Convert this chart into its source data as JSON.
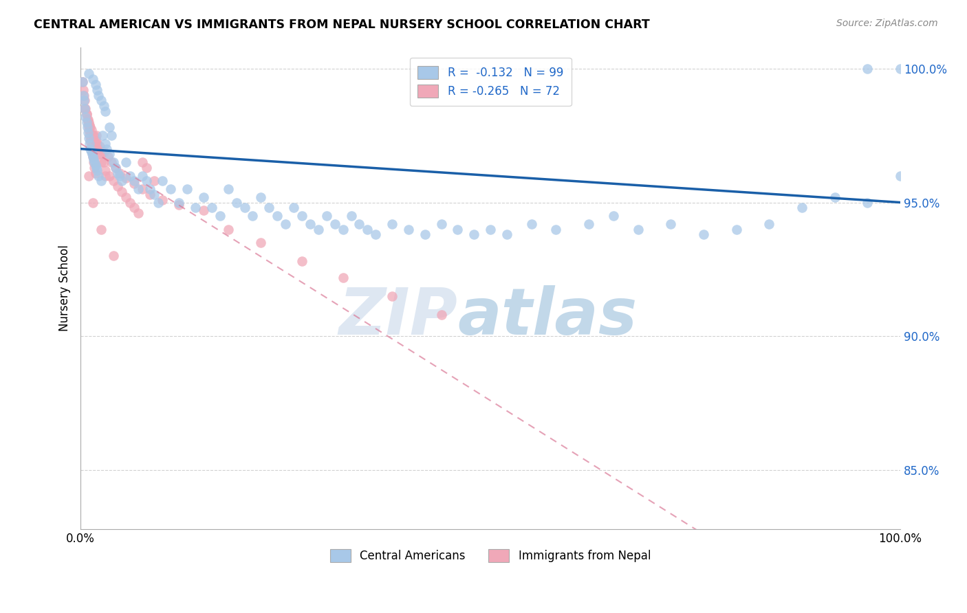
{
  "title": "CENTRAL AMERICAN VS IMMIGRANTS FROM NEPAL NURSERY SCHOOL CORRELATION CHART",
  "source": "Source: ZipAtlas.com",
  "ylabel": "Nursery School",
  "xlim": [
    0.0,
    1.0
  ],
  "ylim": [
    0.828,
    1.008
  ],
  "yticks": [
    0.85,
    0.9,
    0.95,
    1.0
  ],
  "ytick_labels": [
    "85.0%",
    "90.0%",
    "95.0%",
    "100.0%"
  ],
  "xticks": [
    0.0,
    0.2,
    0.4,
    0.6,
    0.8,
    1.0
  ],
  "xtick_labels": [
    "0.0%",
    "",
    "",
    "",
    "",
    "100.0%"
  ],
  "legend_blue_label": "R =  -0.132   N = 99",
  "legend_pink_label": "R = -0.265   N = 72",
  "legend_label1": "Central Americans",
  "legend_label2": "Immigrants from Nepal",
  "blue_color": "#a8c8e8",
  "pink_color": "#f0a8b8",
  "blue_line_color": "#1a5fa8",
  "pink_line_color": "#d87090",
  "watermark_zip": "ZIP",
  "watermark_atlas": "atlas",
  "blue_R": -0.132,
  "pink_R": -0.265,
  "blue_line_start_y": 0.97,
  "blue_line_end_y": 0.95,
  "pink_line_start_y": 0.972,
  "pink_line_end_y": 0.78,
  "blue_scatter_x": [
    0.002,
    0.003,
    0.004,
    0.005,
    0.006,
    0.007,
    0.008,
    0.009,
    0.01,
    0.011,
    0.012,
    0.013,
    0.014,
    0.015,
    0.016,
    0.017,
    0.018,
    0.019,
    0.02,
    0.022,
    0.025,
    0.027,
    0.03,
    0.032,
    0.035,
    0.038,
    0.04,
    0.043,
    0.045,
    0.048,
    0.05,
    0.055,
    0.06,
    0.065,
    0.07,
    0.075,
    0.08,
    0.085,
    0.09,
    0.095,
    0.1,
    0.11,
    0.12,
    0.13,
    0.14,
    0.15,
    0.16,
    0.17,
    0.18,
    0.19,
    0.2,
    0.21,
    0.22,
    0.23,
    0.24,
    0.25,
    0.26,
    0.27,
    0.28,
    0.29,
    0.3,
    0.31,
    0.32,
    0.33,
    0.34,
    0.35,
    0.36,
    0.38,
    0.4,
    0.42,
    0.44,
    0.46,
    0.48,
    0.5,
    0.52,
    0.55,
    0.58,
    0.62,
    0.65,
    0.68,
    0.72,
    0.76,
    0.8,
    0.84,
    0.88,
    0.92,
    0.96,
    1.0,
    0.96,
    1.0,
    0.01,
    0.015,
    0.018,
    0.02,
    0.022,
    0.025,
    0.028,
    0.03,
    0.035
  ],
  "blue_scatter_y": [
    0.995,
    0.99,
    0.988,
    0.985,
    0.982,
    0.98,
    0.978,
    0.976,
    0.974,
    0.972,
    0.97,
    0.969,
    0.968,
    0.967,
    0.966,
    0.965,
    0.964,
    0.963,
    0.962,
    0.96,
    0.958,
    0.975,
    0.972,
    0.97,
    0.968,
    0.975,
    0.965,
    0.963,
    0.961,
    0.96,
    0.958,
    0.965,
    0.96,
    0.958,
    0.955,
    0.96,
    0.958,
    0.955,
    0.953,
    0.95,
    0.958,
    0.955,
    0.95,
    0.955,
    0.948,
    0.952,
    0.948,
    0.945,
    0.955,
    0.95,
    0.948,
    0.945,
    0.952,
    0.948,
    0.945,
    0.942,
    0.948,
    0.945,
    0.942,
    0.94,
    0.945,
    0.942,
    0.94,
    0.945,
    0.942,
    0.94,
    0.938,
    0.942,
    0.94,
    0.938,
    0.942,
    0.94,
    0.938,
    0.94,
    0.938,
    0.942,
    0.94,
    0.942,
    0.945,
    0.94,
    0.942,
    0.938,
    0.94,
    0.942,
    0.948,
    0.952,
    0.95,
    0.96,
    1.0,
    1.0,
    0.998,
    0.996,
    0.994,
    0.992,
    0.99,
    0.988,
    0.986,
    0.984,
    0.978
  ],
  "pink_scatter_x": [
    0.002,
    0.003,
    0.004,
    0.005,
    0.006,
    0.007,
    0.008,
    0.009,
    0.01,
    0.011,
    0.012,
    0.013,
    0.014,
    0.015,
    0.016,
    0.017,
    0.018,
    0.019,
    0.02,
    0.022,
    0.025,
    0.028,
    0.03,
    0.035,
    0.04,
    0.045,
    0.05,
    0.055,
    0.06,
    0.065,
    0.07,
    0.075,
    0.08,
    0.09,
    0.01,
    0.012,
    0.015,
    0.018,
    0.02,
    0.022,
    0.025,
    0.03,
    0.005,
    0.007,
    0.009,
    0.011,
    0.013,
    0.016,
    0.019,
    0.023,
    0.028,
    0.033,
    0.038,
    0.043,
    0.048,
    0.055,
    0.065,
    0.075,
    0.085,
    0.1,
    0.12,
    0.15,
    0.18,
    0.22,
    0.27,
    0.32,
    0.38,
    0.44,
    0.01,
    0.015,
    0.025,
    0.04
  ],
  "pink_scatter_y": [
    0.995,
    0.992,
    0.99,
    0.988,
    0.985,
    0.983,
    0.981,
    0.979,
    0.977,
    0.975,
    0.973,
    0.971,
    0.969,
    0.967,
    0.965,
    0.963,
    0.961,
    0.975,
    0.972,
    0.97,
    0.968,
    0.965,
    0.962,
    0.96,
    0.958,
    0.956,
    0.954,
    0.952,
    0.95,
    0.948,
    0.946,
    0.965,
    0.963,
    0.958,
    0.98,
    0.978,
    0.975,
    0.972,
    0.97,
    0.968,
    0.965,
    0.96,
    0.985,
    0.983,
    0.981,
    0.979,
    0.977,
    0.975,
    0.973,
    0.971,
    0.969,
    0.967,
    0.965,
    0.963,
    0.961,
    0.959,
    0.957,
    0.955,
    0.953,
    0.951,
    0.949,
    0.947,
    0.94,
    0.935,
    0.928,
    0.922,
    0.915,
    0.908,
    0.96,
    0.95,
    0.94,
    0.93
  ]
}
